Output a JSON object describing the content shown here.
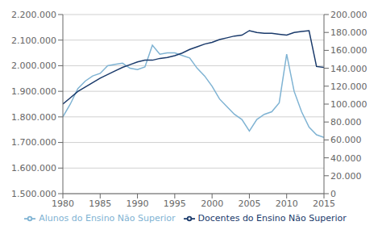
{
  "chart_data": {
    "type": "line",
    "x": [
      1980,
      1981,
      1982,
      1983,
      1984,
      1985,
      1986,
      1987,
      1988,
      1989,
      1990,
      1991,
      1992,
      1993,
      1994,
      1995,
      1996,
      1997,
      1998,
      1999,
      2000,
      2001,
      2002,
      2003,
      2004,
      2005,
      2006,
      2007,
      2008,
      2009,
      2010,
      2011,
      2012,
      2013,
      2014,
      2015
    ],
    "series": [
      {
        "name": "Alunos do Ensino Não Superior",
        "color": "#7fb3d3",
        "values": [
          1800000,
          1850000,
          1910000,
          1940000,
          1960000,
          1970000,
          2000000,
          2005000,
          2010000,
          1990000,
          1985000,
          1995000,
          2080000,
          2045000,
          2050000,
          2050000,
          2040000,
          2030000,
          1990000,
          1960000,
          1920000,
          1870000,
          1840000,
          1810000,
          1790000,
          1745000,
          1790000,
          1810000,
          1820000,
          1855000,
          2045000,
          1900000,
          1820000,
          1760000,
          1730000,
          1720000
        ]
      },
      {
        "name": "Docentes do Ensino Não Superior",
        "color": "#1a3a6b",
        "axis": "y2",
        "values": [
          100000,
          107000,
          114000,
          119000,
          124000,
          129000,
          133000,
          137000,
          141000,
          144000,
          147000,
          149000,
          149000,
          151000,
          152000,
          154000,
          157000,
          161000,
          164000,
          167000,
          169000,
          172000,
          174000,
          176000,
          177000,
          182000,
          180000,
          179000,
          179000,
          178000,
          177000,
          180000,
          181000,
          182000,
          142000,
          141000
        ]
      }
    ],
    "xlim": [
      1980,
      2015
    ],
    "xticks": [
      1980,
      1985,
      1990,
      1995,
      2000,
      2005,
      2010,
      2015
    ],
    "ylim": [
      1500000,
      2200000
    ],
    "yticks": [
      {
        "value": 1500000,
        "label": "1.500.000"
      },
      {
        "value": 1600000,
        "label": "1.600.000"
      },
      {
        "value": 1700000,
        "label": "1.700.000"
      },
      {
        "value": 1800000,
        "label": "1.800.000"
      },
      {
        "value": 1900000,
        "label": "1.900.000"
      },
      {
        "value": 2000000,
        "label": "2.000.000"
      },
      {
        "value": 2100000,
        "label": "2.100.000"
      },
      {
        "value": 2200000,
        "label": "2.200.000"
      }
    ],
    "y2lim": [
      0,
      200000
    ],
    "y2ticks": [
      0,
      {
        "value": 20000,
        "label": "20.000"
      },
      {
        "value": 40000,
        "label": "40.000"
      },
      {
        "value": 60000,
        "label": "60.000"
      },
      {
        "value": 80000,
        "label": "80.000"
      },
      {
        "value": 100000,
        "label": "100.000"
      },
      {
        "value": 120000,
        "label": "120.000"
      },
      {
        "value": 140000,
        "label": "140.000"
      },
      {
        "value": 160000,
        "label": "160.000"
      },
      {
        "value": 180000,
        "label": "180.000"
      },
      {
        "value": 200000,
        "label": "200.000"
      }
    ],
    "grid": true,
    "legend": "bottom"
  }
}
